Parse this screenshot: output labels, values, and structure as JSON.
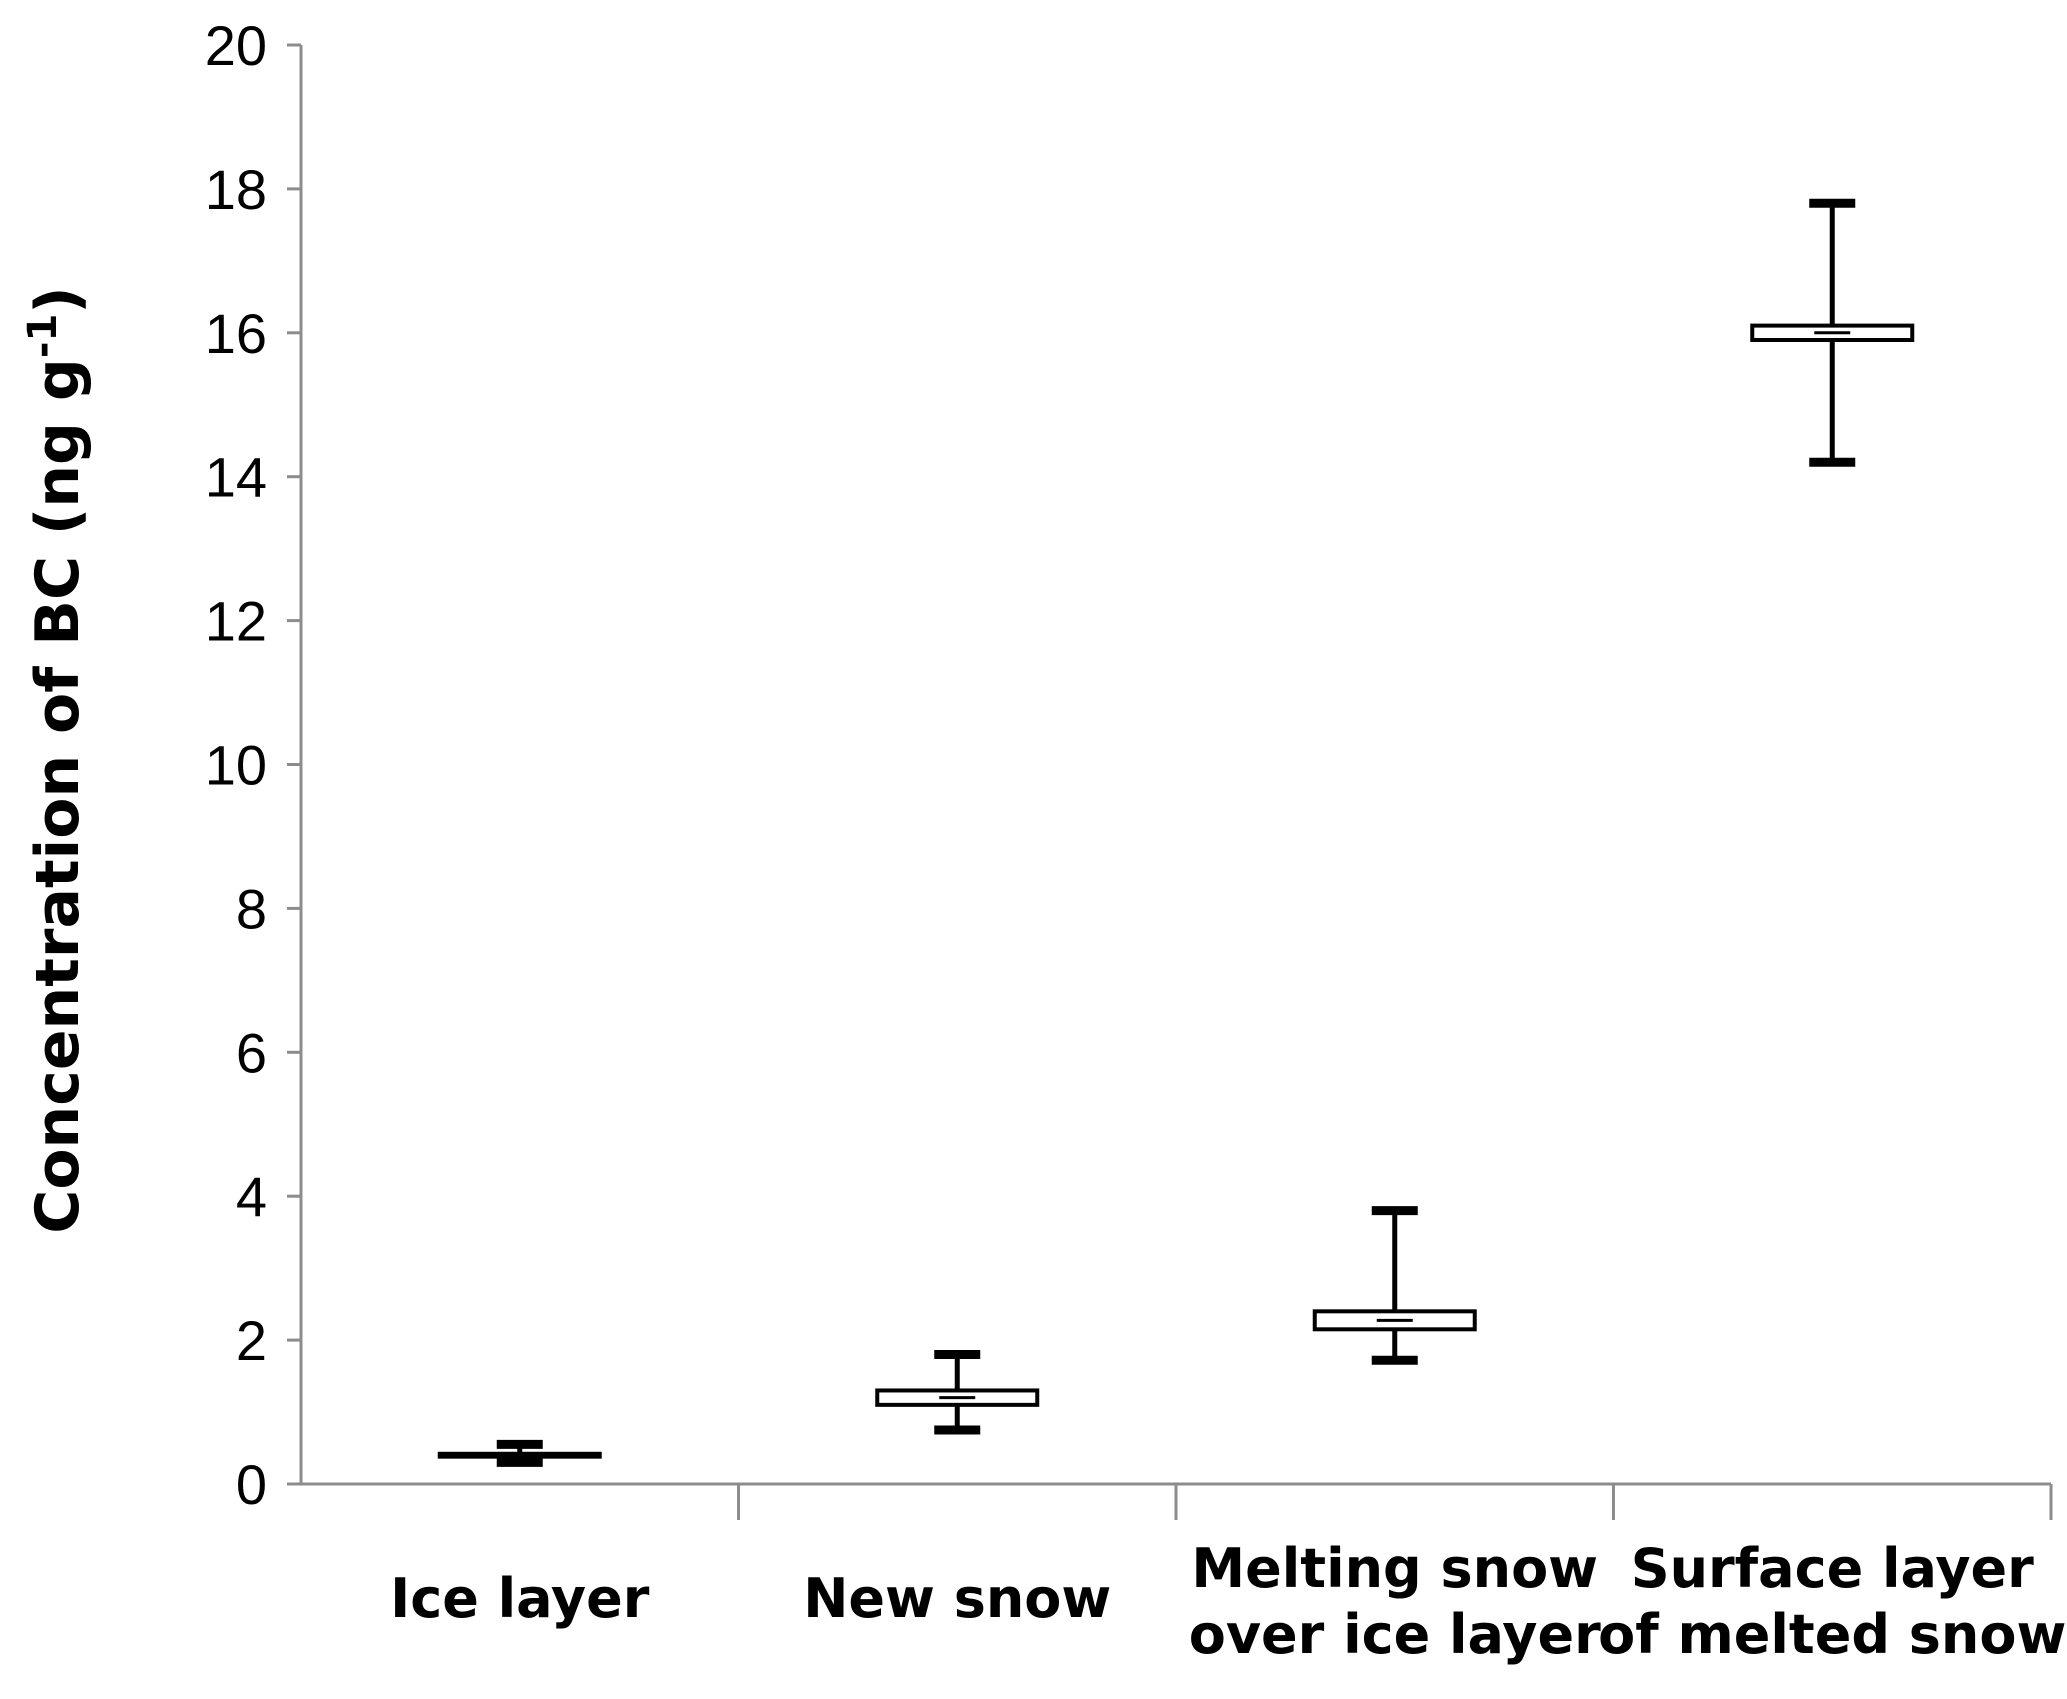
{
  "chart_data": {
    "type": "box",
    "ylabel": "Concentration of BC (ng g",
    "ylabel_superscript": "-1",
    "ylabel_suffix": ")",
    "ylim": [
      0,
      20
    ],
    "yticks": [
      "0",
      "2",
      "4",
      "6",
      "8",
      "10",
      "12",
      "14",
      "16",
      "18",
      "20"
    ],
    "grid": false,
    "categories": [
      [
        "Ice layer"
      ],
      [
        "New snow"
      ],
      [
        "Melting snow",
        "over ice layer"
      ],
      [
        "Surface layer",
        "of melted snow"
      ]
    ],
    "boxes": [
      {
        "min": 0.3,
        "q1": 0.38,
        "q3": 0.42,
        "max": 0.55
      },
      {
        "min": 0.75,
        "q1": 1.1,
        "q3": 1.3,
        "max": 1.8
      },
      {
        "min": 1.72,
        "q1": 2.15,
        "q3": 2.4,
        "max": 3.8
      },
      {
        "min": 14.2,
        "q1": 15.9,
        "q3": 16.1,
        "max": 17.8
      }
    ]
  }
}
